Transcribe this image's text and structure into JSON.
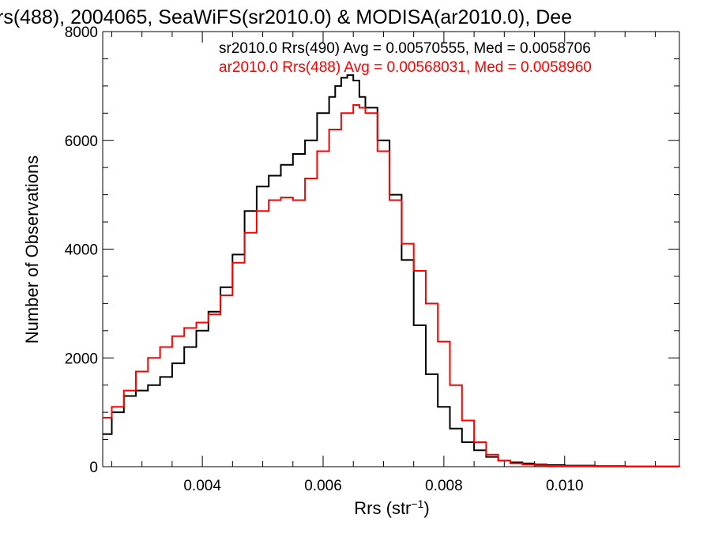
{
  "chart_data": {
    "type": "line",
    "title": "rs(488), 2004065, SeaWiFS(sr2010.0) & MODISA(ar2010.0), Dee",
    "xlabel": "Rrs (str",
    "xlabel_sup": "−1",
    "xlabel_close": ")",
    "ylabel": "Number of Observations",
    "xlim": [
      0.00235,
      0.0119
    ],
    "ylim": [
      0,
      8000
    ],
    "x_ticks": [
      0.004,
      0.006,
      0.008,
      0.01
    ],
    "x_tick_labels": [
      "0.004",
      "0.006",
      "0.008",
      "0.010"
    ],
    "y_ticks": [
      0,
      2000,
      4000,
      6000,
      8000
    ],
    "y_tick_labels": [
      "0",
      "2000",
      "4000",
      "6000",
      "8000"
    ],
    "grid": false,
    "legend_position": "top-right",
    "series": [
      {
        "name": "sr2010.0 Rrs(490) Avg = 0.00570555, Med = 0.0058706",
        "color": "#000000",
        "x": [
          0.00235,
          0.0025,
          0.0027,
          0.0029,
          0.0031,
          0.0033,
          0.0035,
          0.0037,
          0.0039,
          0.0041,
          0.0043,
          0.0045,
          0.0047,
          0.0049,
          0.0051,
          0.0053,
          0.0055,
          0.0057,
          0.0059,
          0.0061,
          0.0062,
          0.0063,
          0.0064,
          0.0065,
          0.0066,
          0.0067,
          0.0069,
          0.0071,
          0.0073,
          0.0075,
          0.0077,
          0.0079,
          0.0081,
          0.0083,
          0.0085,
          0.0087,
          0.0089,
          0.0091,
          0.0093,
          0.0095,
          0.0097,
          0.01,
          0.0105,
          0.011,
          0.0119
        ],
        "y": [
          600,
          1000,
          1300,
          1400,
          1500,
          1650,
          1900,
          2200,
          2500,
          2850,
          3300,
          3900,
          4700,
          5150,
          5350,
          5550,
          5750,
          6000,
          6500,
          6800,
          7000,
          7150,
          7200,
          7100,
          6800,
          6600,
          6000,
          5000,
          3800,
          2600,
          1700,
          1100,
          700,
          450,
          300,
          180,
          110,
          80,
          60,
          40,
          30,
          20,
          10,
          5,
          0
        ]
      },
      {
        "name": "ar2010.0 Rrs(488) Avg = 0.00568031, Med = 0.0058960",
        "color": "#ff0000",
        "x": [
          0.00235,
          0.0025,
          0.0027,
          0.0029,
          0.0031,
          0.0033,
          0.0035,
          0.0037,
          0.0039,
          0.0041,
          0.0043,
          0.0045,
          0.0047,
          0.0049,
          0.0051,
          0.0053,
          0.0055,
          0.0057,
          0.0059,
          0.0061,
          0.0063,
          0.0065,
          0.0066,
          0.0067,
          0.0069,
          0.0071,
          0.0073,
          0.0075,
          0.0077,
          0.0079,
          0.0081,
          0.0083,
          0.0085,
          0.0087,
          0.0089,
          0.0091,
          0.0093,
          0.0095,
          0.0097,
          0.01,
          0.0105,
          0.011,
          0.0119
        ],
        "y": [
          900,
          1100,
          1400,
          1750,
          2000,
          2200,
          2400,
          2550,
          2650,
          2800,
          3150,
          3750,
          4300,
          4700,
          4900,
          4950,
          4900,
          5300,
          5800,
          6200,
          6500,
          6650,
          6600,
          6500,
          5800,
          4900,
          4100,
          3600,
          3000,
          2300,
          1500,
          850,
          450,
          220,
          110,
          60,
          40,
          25,
          15,
          10,
          5,
          3,
          0
        ]
      }
    ]
  }
}
